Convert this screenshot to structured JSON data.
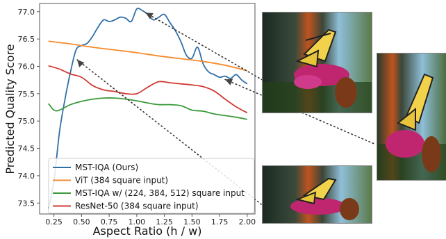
{
  "chart_data": {
    "type": "line",
    "title": "",
    "xlabel": "Aspect Ratio (h / w)",
    "ylabel": "Predicted Quality Score",
    "xlim": [
      0.12,
      2.07
    ],
    "ylim": [
      73.3,
      77.15
    ],
    "xticks": [
      {
        "value": 0.25,
        "label": "0.25"
      },
      {
        "value": 0.5,
        "label": "0.50"
      },
      {
        "value": 0.75,
        "label": "0.75"
      },
      {
        "value": 1.0,
        "label": "1.00"
      },
      {
        "value": 1.25,
        "label": "1.25"
      },
      {
        "value": 1.5,
        "label": "1.50"
      },
      {
        "value": 1.75,
        "label": "1.75"
      },
      {
        "value": 2.0,
        "label": "2.00"
      }
    ],
    "yticks": [
      {
        "value": 73.5,
        "label": "73.5"
      },
      {
        "value": 74.0,
        "label": "74.0"
      },
      {
        "value": 74.5,
        "label": "74.5"
      },
      {
        "value": 75.0,
        "label": "75.0"
      },
      {
        "value": 75.5,
        "label": "75.5"
      },
      {
        "value": 76.0,
        "label": "76.0"
      },
      {
        "value": 76.5,
        "label": "76.5"
      },
      {
        "value": 77.0,
        "label": "77.0"
      }
    ],
    "grid": false,
    "legend_position": "bottom-left",
    "series": [
      {
        "name": "MST-IQA (Ours)",
        "color": "#2f6fa8",
        "x": [
          0.2,
          0.25,
          0.3,
          0.35,
          0.4,
          0.45,
          0.5,
          0.55,
          0.6,
          0.65,
          0.7,
          0.75,
          0.8,
          0.85,
          0.9,
          0.95,
          1.0,
          1.05,
          1.1,
          1.15,
          1.2,
          1.25,
          1.3,
          1.35,
          1.4,
          1.45,
          1.5,
          1.55,
          1.6,
          1.65,
          1.7,
          1.75,
          1.8,
          1.85,
          1.9,
          1.95,
          2.0
        ],
        "y": [
          73.4,
          73.9,
          74.8,
          75.4,
          75.9,
          76.3,
          76.38,
          76.42,
          76.55,
          76.72,
          76.85,
          76.82,
          76.85,
          76.9,
          76.88,
          76.82,
          77.05,
          77.02,
          76.95,
          76.85,
          76.9,
          76.95,
          76.8,
          76.65,
          76.45,
          76.2,
          76.15,
          76.35,
          76.05,
          75.9,
          75.85,
          75.8,
          75.82,
          75.78,
          75.85,
          75.75,
          75.68
        ]
      },
      {
        "name": "ViT (384 square input)",
        "color": "#f58a2c",
        "x": [
          0.2,
          0.4,
          0.6,
          0.8,
          1.0,
          1.2,
          1.4,
          1.6,
          1.8,
          2.0
        ],
        "y": [
          76.46,
          76.41,
          76.35,
          76.3,
          76.25,
          76.19,
          76.14,
          76.09,
          76.02,
          75.92
        ]
      },
      {
        "name": "MST-IQA w/ (224, 384, 512) square input",
        "color": "#3a9a3a",
        "x": [
          0.2,
          0.25,
          0.3,
          0.4,
          0.5,
          0.6,
          0.7,
          0.8,
          0.9,
          1.0,
          1.1,
          1.2,
          1.3,
          1.4,
          1.5,
          1.6,
          1.7,
          1.8,
          1.9,
          2.0
        ],
        "y": [
          75.32,
          75.2,
          75.2,
          75.3,
          75.36,
          75.4,
          75.42,
          75.42,
          75.4,
          75.37,
          75.33,
          75.3,
          75.3,
          75.28,
          75.2,
          75.18,
          75.13,
          75.1,
          75.07,
          75.03
        ]
      },
      {
        "name": "ResNet-50 (384 square input)",
        "color": "#d03a34",
        "x": [
          0.2,
          0.3,
          0.4,
          0.5,
          0.6,
          0.7,
          0.8,
          0.9,
          1.0,
          1.1,
          1.2,
          1.3,
          1.4,
          1.5,
          1.6,
          1.7,
          1.8,
          1.9,
          2.0
        ],
        "y": [
          76.01,
          75.95,
          75.86,
          75.8,
          75.65,
          75.57,
          75.54,
          75.5,
          75.5,
          75.62,
          75.72,
          75.7,
          75.68,
          75.66,
          75.63,
          75.55,
          75.4,
          75.26,
          75.15
        ]
      }
    ],
    "annotations": [
      {
        "x": 1.08,
        "y": 76.98
      },
      {
        "x": 0.46,
        "y": 76.12
      },
      {
        "x": 1.8,
        "y": 75.76
      }
    ]
  },
  "photos": [
    {
      "name": "butterfly-photo-square",
      "aspect": "square"
    },
    {
      "name": "butterfly-photo-tall",
      "aspect": "tall"
    },
    {
      "name": "butterfly-photo-wide",
      "aspect": "wide"
    }
  ]
}
